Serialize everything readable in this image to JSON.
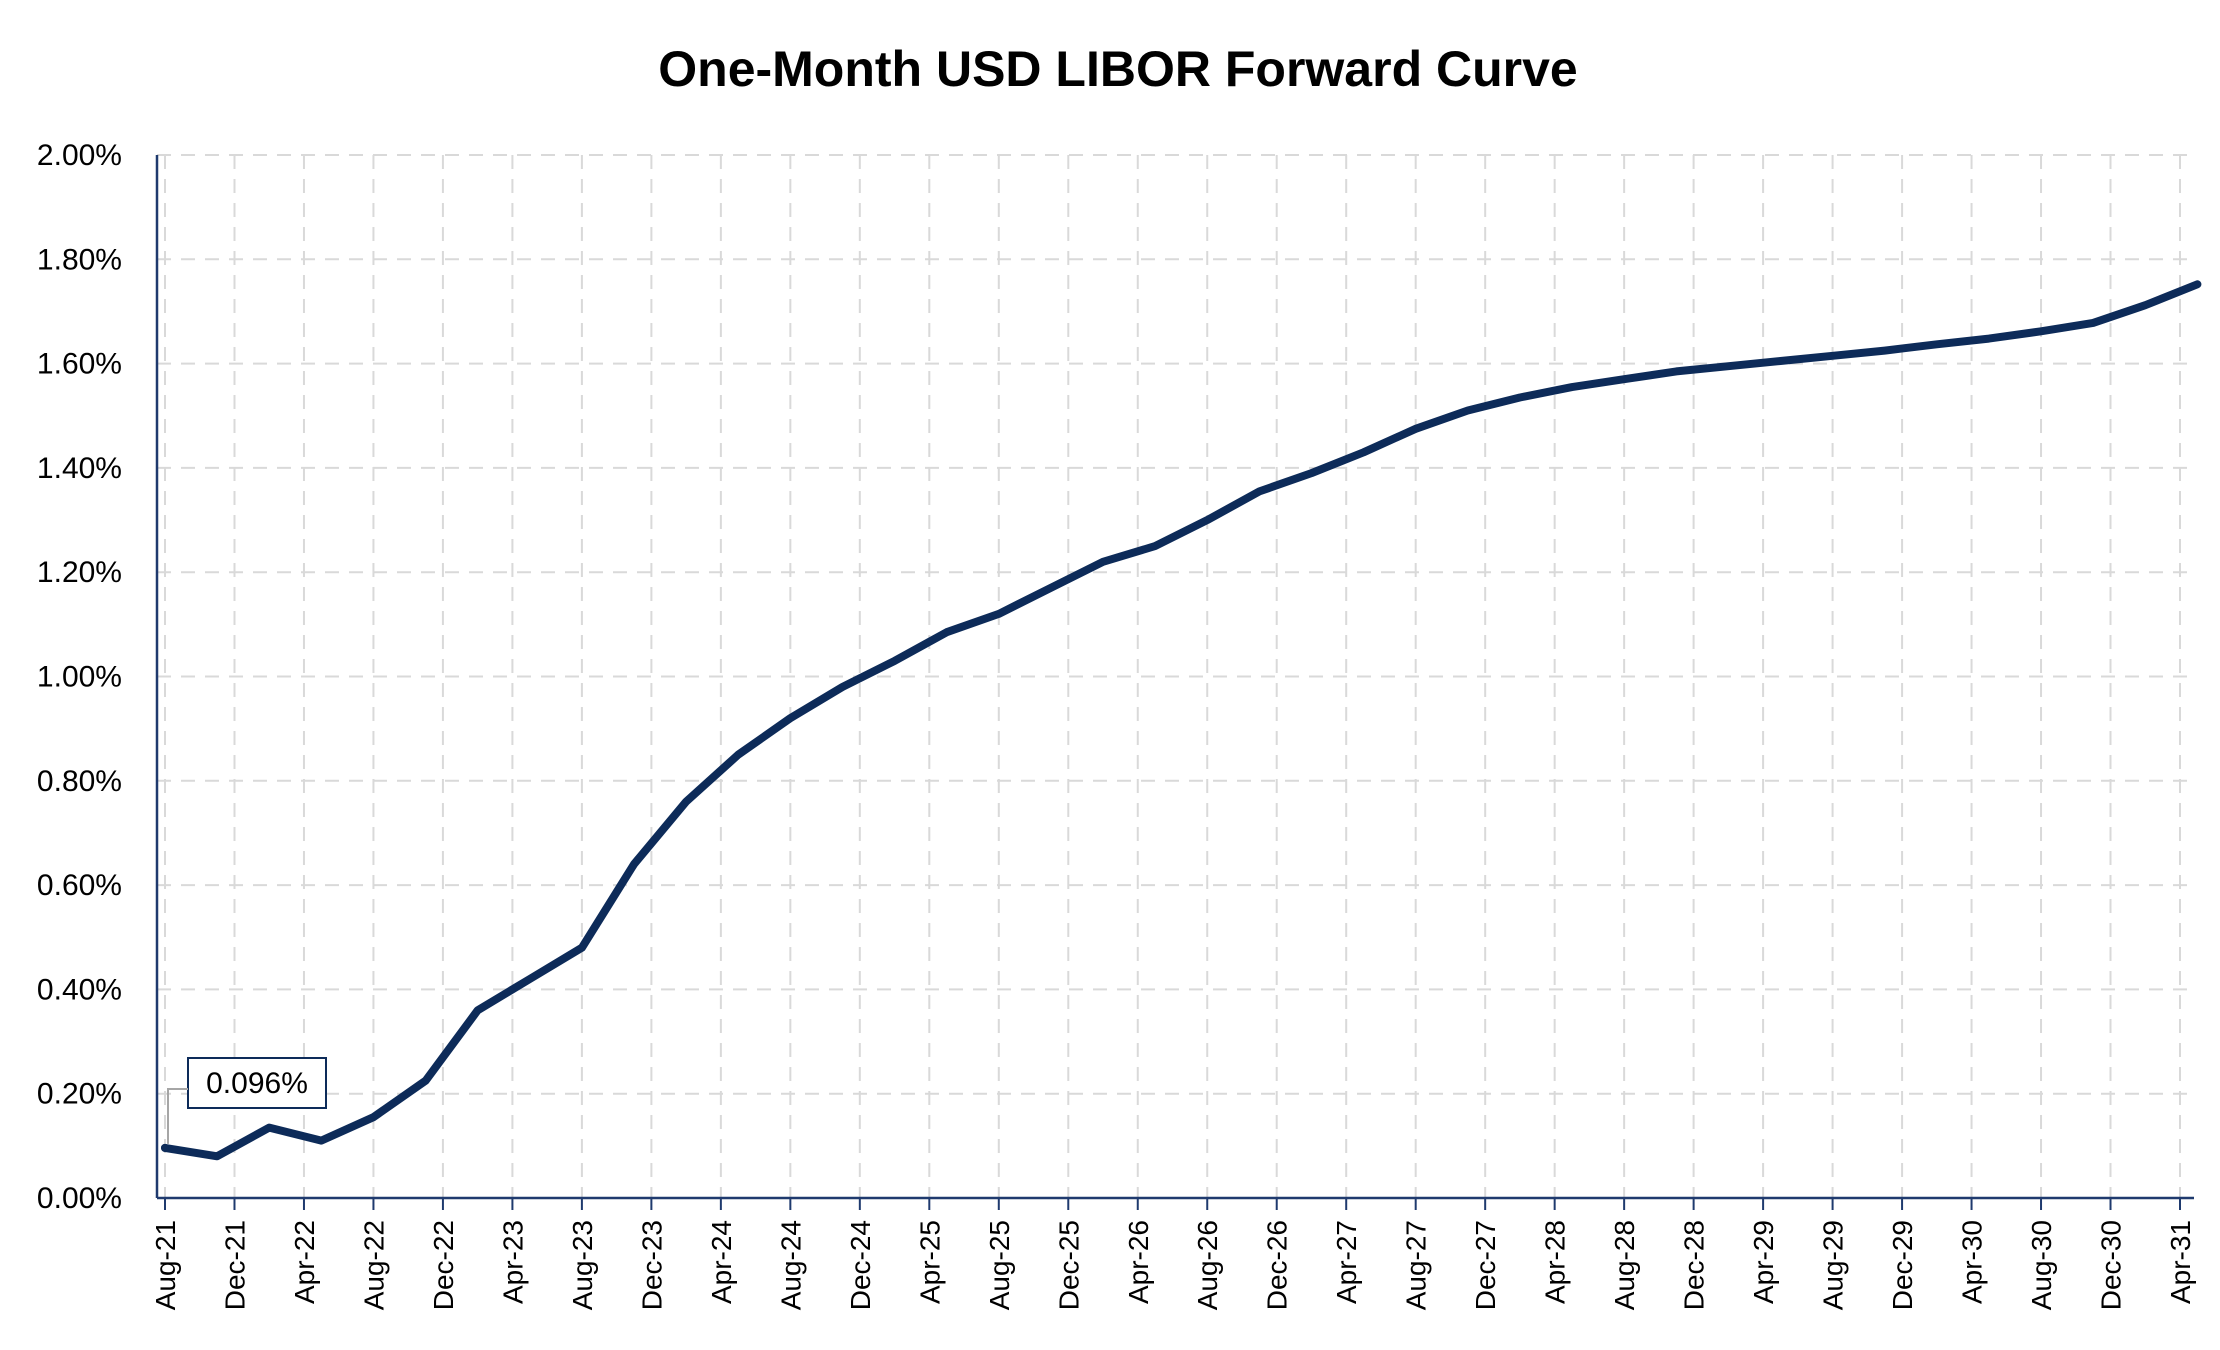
{
  "chart_data": {
    "type": "line",
    "title": "One-Month USD LIBOR Forward Curve",
    "xlabel": "",
    "ylabel": "",
    "ylim": [
      0,
      0.02
    ],
    "yticks": [
      0,
      0.002,
      0.004,
      0.006,
      0.008,
      0.01,
      0.012,
      0.014,
      0.016,
      0.018,
      0.02
    ],
    "ytick_labels": [
      "0.00%",
      "0.20%",
      "0.40%",
      "0.60%",
      "0.80%",
      "1.00%",
      "1.20%",
      "1.40%",
      "1.60%",
      "1.80%",
      "2.00%"
    ],
    "x_tick_labels": [
      "Aug-21",
      "Dec-21",
      "Apr-22",
      "Aug-22",
      "Dec-22",
      "Apr-23",
      "Aug-23",
      "Dec-23",
      "Apr-24",
      "Aug-24",
      "Dec-24",
      "Apr-25",
      "Aug-25",
      "Dec-25",
      "Apr-26",
      "Aug-26",
      "Dec-26",
      "Apr-27",
      "Aug-27",
      "Dec-27",
      "Apr-28",
      "Aug-28",
      "Dec-28",
      "Apr-29",
      "Aug-29",
      "Dec-29",
      "Apr-30",
      "Aug-30",
      "Dec-30",
      "Apr-31"
    ],
    "grid": true,
    "legend": "none",
    "line_color": "#0d2b59",
    "axis_color": "#1f3a6e",
    "grid_color": "#d9d9d9",
    "series": [
      {
        "x": [
          "Aug-21",
          "Nov-21",
          "Feb-22",
          "May-22",
          "Aug-22",
          "Nov-22",
          "Feb-23",
          "May-23",
          "Aug-23",
          "Nov-23",
          "Feb-24",
          "May-24",
          "Aug-24",
          "Nov-24",
          "Feb-25",
          "May-25",
          "Aug-25",
          "Nov-25",
          "Feb-26",
          "May-26",
          "Aug-26",
          "Nov-26",
          "Feb-27",
          "May-27",
          "Aug-27",
          "Nov-27",
          "Feb-28",
          "May-28",
          "Aug-28",
          "Nov-28",
          "Feb-29",
          "May-29",
          "Aug-29",
          "Nov-29",
          "Feb-30",
          "May-30",
          "Aug-30",
          "Nov-30",
          "Feb-31",
          "May-31"
        ],
        "values": [
          0.00096,
          0.0008,
          0.00135,
          0.0011,
          0.00155,
          0.00225,
          0.0036,
          0.0042,
          0.0048,
          0.0064,
          0.0076,
          0.0085,
          0.0092,
          0.0098,
          0.0103,
          0.01085,
          0.0112,
          0.0117,
          0.0122,
          0.0125,
          0.013,
          0.01355,
          0.0139,
          0.0143,
          0.01475,
          0.0151,
          0.01535,
          0.01555,
          0.0157,
          0.01585,
          0.01595,
          0.01605,
          0.01615,
          0.01625,
          0.01637,
          0.01648,
          0.01662,
          0.01678,
          0.01712,
          0.01752
        ]
      }
    ],
    "annotations": [
      {
        "text": "0.096%",
        "x": "Aug-21",
        "y": 0.00096
      }
    ]
  }
}
